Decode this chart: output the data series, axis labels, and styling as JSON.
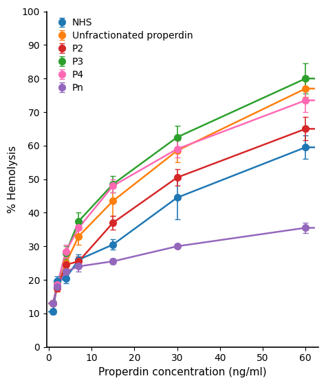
{
  "series": {
    "NHS": {
      "color": "#1F77B4",
      "x": [
        1,
        2,
        4,
        7,
        15,
        30,
        60
      ],
      "y": [
        10.5,
        19.5,
        20.5,
        26.0,
        30.5,
        44.5,
        59.5
      ],
      "yerr": [
        0.8,
        1.5,
        1.5,
        1.5,
        1.5,
        6.5,
        3.5
      ]
    },
    "Unfractionated properdin": {
      "color": "#FF7F0E",
      "x": [
        1,
        2,
        4,
        7,
        15,
        30,
        60
      ],
      "y": [
        13.0,
        18.0,
        25.0,
        33.0,
        43.5,
        58.5,
        77.0
      ],
      "yerr": [
        0.5,
        1.5,
        1.5,
        2.5,
        4.5,
        3.5,
        2.5
      ]
    },
    "P2": {
      "color": "#D62728",
      "x": [
        1,
        2,
        4,
        7,
        15,
        30,
        60
      ],
      "y": [
        13.0,
        17.5,
        24.5,
        25.5,
        37.0,
        50.5,
        65.0
      ],
      "yerr": [
        0.5,
        1.0,
        2.0,
        1.5,
        2.0,
        2.5,
        3.5
      ]
    },
    "P3": {
      "color": "#2CA02C",
      "x": [
        1,
        2,
        4,
        7,
        15,
        30,
        60
      ],
      "y": [
        13.0,
        18.5,
        28.0,
        37.5,
        48.5,
        62.5,
        80.0
      ],
      "yerr": [
        0.5,
        1.0,
        2.0,
        2.5,
        2.5,
        3.5,
        4.5
      ]
    },
    "P4": {
      "color": "#FF69B4",
      "x": [
        1,
        2,
        4,
        7,
        15,
        30,
        60
      ],
      "y": [
        13.0,
        18.5,
        28.5,
        35.5,
        48.0,
        59.0,
        73.5
      ],
      "yerr": [
        0.5,
        1.0,
        2.0,
        2.5,
        2.0,
        2.5,
        3.5
      ]
    },
    "Pn": {
      "color": "#9467BD",
      "x": [
        1,
        2,
        4,
        7,
        15,
        30,
        60
      ],
      "y": [
        13.0,
        18.0,
        22.5,
        24.0,
        25.5,
        30.0,
        35.5
      ],
      "yerr": [
        0.5,
        1.0,
        1.5,
        1.5,
        0.8,
        0.5,
        1.5
      ]
    }
  },
  "xlabel": "Properdin concentration (ng/ml)",
  "ylabel": "% Hemolysis",
  "xlim": [
    -0.5,
    63
  ],
  "ylim": [
    0,
    100
  ],
  "xticks": [
    0,
    10,
    20,
    30,
    40,
    50,
    60
  ],
  "yticks": [
    0,
    10,
    20,
    30,
    40,
    50,
    60,
    70,
    80,
    90,
    100
  ],
  "legend_order": [
    "NHS",
    "Unfractionated properdin",
    "P2",
    "P3",
    "P4",
    "Pn"
  ],
  "marker_size": 7,
  "linewidth": 1.8,
  "capsize": 3,
  "figsize": [
    4.74,
    5.6
  ],
  "dpi": 100
}
